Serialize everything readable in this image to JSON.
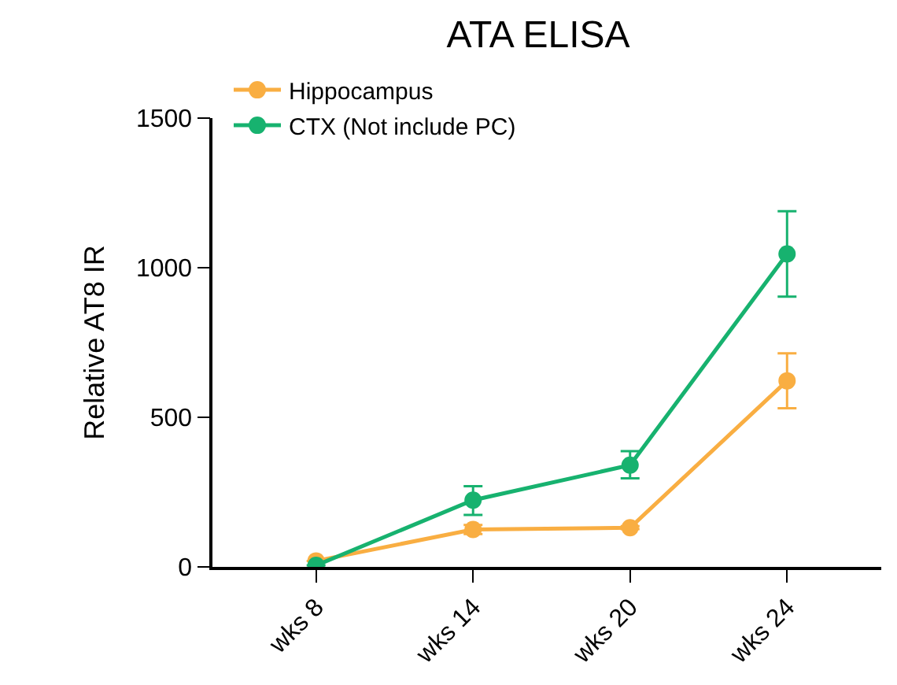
{
  "chart_data": {
    "type": "line",
    "title": "ATA ELISA",
    "ylabel": "Relative AT8 IR",
    "categories": [
      "wks 8",
      "wks 14",
      "wks 20",
      "wks 24"
    ],
    "series": [
      {
        "name": "Hippocampus",
        "color": "#f9ae42",
        "values": [
          20,
          125,
          131,
          622
        ],
        "errors": [
          null,
          15,
          5,
          [
            530,
            714
          ]
        ]
      },
      {
        "name": "CTX (Not include PC)",
        "color": "#17b26f",
        "values": [
          5,
          223,
          340,
          1046
        ],
        "errors": [
          null,
          [
            174,
            270
          ],
          [
            296,
            387
          ],
          [
            903,
            1189
          ]
        ]
      }
    ],
    "ylim": [
      0,
      1500
    ],
    "yticks": [
      0,
      500,
      1000,
      1500
    ],
    "legend": "top left",
    "marker": "circle",
    "line_style": "solid"
  }
}
